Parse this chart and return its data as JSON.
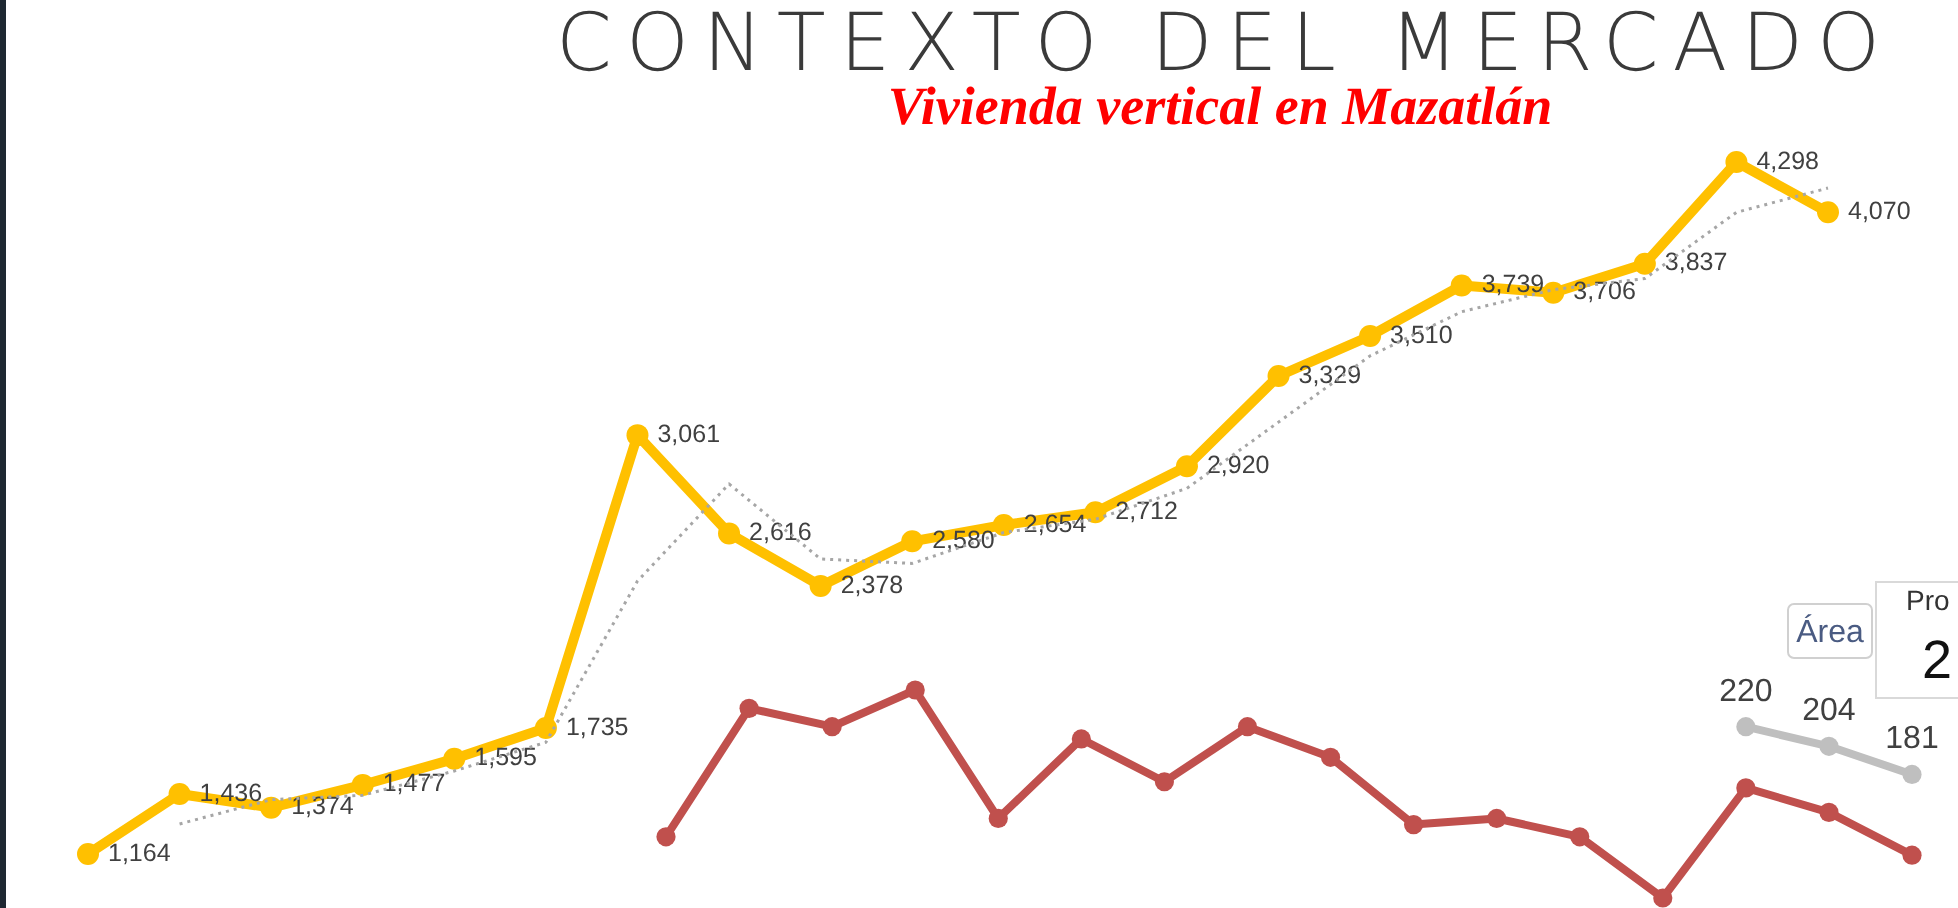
{
  "chart_data": [
    {
      "type": "line",
      "title": "CONTEXTO DEL MERCADO",
      "subtitle": "Vivienda vertical en Mazatlán",
      "categories": [
        null,
        null,
        null,
        null,
        null,
        null,
        null,
        null,
        null,
        null,
        null,
        null,
        null,
        null,
        null,
        null,
        null,
        null,
        null,
        null
      ],
      "marker": "circle",
      "series": [
        {
          "color": "#ffc000",
          "values": [
            1164,
            1436,
            1374,
            1477,
            1595,
            1735,
            3061,
            2616,
            2378,
            2580,
            2654,
            2712,
            2920,
            3329,
            3510,
            3739,
            3706,
            3837,
            4298,
            4070
          ],
          "value_labels": [
            "1,164",
            "1,436",
            "1,374",
            "1,477",
            "1,595",
            "1,735",
            "3,061",
            "2,616",
            "2,378",
            "2,580",
            "2,654",
            "2,712",
            "2,920",
            "3,329",
            "3,510",
            "3,739",
            "3,706",
            "3,837",
            "4,298",
            "4,070"
          ]
        },
        {
          "type": "line",
          "color": "#a6a6a6",
          "line_style": "dotted",
          "marker": "none",
          "values": [
            null,
            1300,
            1410,
            1430,
            1540,
            1670,
            2400,
            2840,
            2500,
            2480,
            2620,
            2680,
            2820,
            3120,
            3420,
            3620,
            3720,
            3770,
            4070,
            4180
          ]
        }
      ]
    },
    {
      "type": "line",
      "categories": [
        null,
        null,
        null,
        null,
        null,
        null,
        null,
        null,
        null,
        null,
        null,
        null,
        null,
        null,
        null,
        null
      ],
      "marker": "circle",
      "series": [
        {
          "color": "#c0504d",
          "values": [
            130,
            235,
            220,
            250,
            145,
            210,
            175,
            220,
            195,
            140,
            145,
            130,
            80,
            170,
            150,
            115
          ]
        },
        {
          "color": "#bfbfbf",
          "values": [
            null,
            null,
            null,
            null,
            null,
            null,
            null,
            null,
            null,
            null,
            null,
            null,
            null,
            220,
            204,
            181
          ],
          "value_labels": [
            null,
            null,
            null,
            null,
            null,
            null,
            null,
            null,
            null,
            null,
            null,
            null,
            null,
            "220",
            "204",
            "181"
          ]
        }
      ]
    },
    {
      "type": "other",
      "title": "Pro",
      "annotations": [
        "2",
        "Área"
      ]
    }
  ]
}
